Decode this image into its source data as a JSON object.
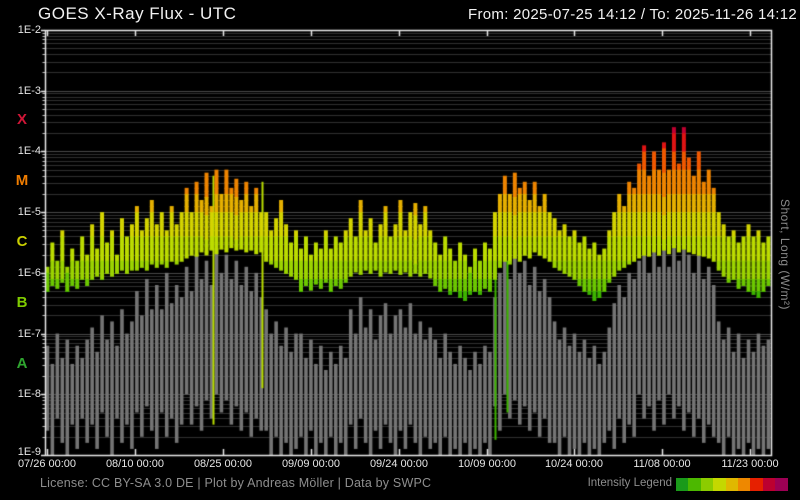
{
  "header": {
    "title": "GOES X-Ray Flux - UTC",
    "range": "From: 2025-07-25 14:12  /  To: 2025-11-26 14:12"
  },
  "footer": {
    "license": "License: CC BY-SA 3.0 DE | Plot by Andreas Möller | Data by SWPC",
    "legend_label": "Intensity Legend"
  },
  "axes": {
    "right_label": "Short, Long (W/m²)"
  },
  "chart_data": {
    "type": "line",
    "title": "GOES X-Ray Flux - UTC",
    "x_start": "2025-07-25 14:12",
    "x_end": "2025-11-26 14:12",
    "x_total_days": 124,
    "grid": true,
    "y_log_range": [
      -2,
      -9
    ],
    "y_tick_labels": [
      "1E-2",
      "1E-3",
      "1E-4",
      "1E-5",
      "1E-6",
      "1E-7",
      "1E-8",
      "1E-9"
    ],
    "class_bands": [
      {
        "label": "X",
        "log": -3.5,
        "color": "#d01637"
      },
      {
        "label": "M",
        "log": -4.5,
        "color": "#f07d00"
      },
      {
        "label": "C",
        "log": -5.5,
        "color": "#c9ce00"
      },
      {
        "label": "B",
        "log": -6.5,
        "color": "#7fcb00"
      },
      {
        "label": "A",
        "log": -7.5,
        "color": "#2fa52f"
      }
    ],
    "x_ticks": [
      {
        "label": "07/26 00:00",
        "day": 0.41
      },
      {
        "label": "08/10 00:00",
        "day": 15.41
      },
      {
        "label": "08/25 00:00",
        "day": 30.41
      },
      {
        "label": "09/09 00:00",
        "day": 45.41
      },
      {
        "label": "09/24 00:00",
        "day": 60.41
      },
      {
        "label": "10/09 00:00",
        "day": 75.41
      },
      {
        "label": "10/24 00:00",
        "day": 90.41
      },
      {
        "label": "11/08 00:00",
        "day": 105.41
      },
      {
        "label": "11/23 00:00",
        "day": 120.41
      }
    ],
    "legend_colors": [
      "#1a9a1a",
      "#4cb800",
      "#8ccc00",
      "#c4d800",
      "#e0b800",
      "#ee8800",
      "#e62000",
      "#bc0030",
      "#9c0054"
    ],
    "color_stops": [
      {
        "max": -6.3,
        "color": "#3db400"
      },
      {
        "max": -6.05,
        "color": "#6cc800"
      },
      {
        "max": -5.8,
        "color": "#9cd400"
      },
      {
        "max": -5.4,
        "color": "#bcdc00"
      },
      {
        "max": -5.0,
        "color": "#d4d400"
      },
      {
        "max": -4.7,
        "color": "#e6b000"
      },
      {
        "max": -4.3,
        "color": "#ee8400"
      },
      {
        "max": -4.0,
        "color": "#f05800"
      },
      {
        "max": -3.7,
        "color": "#e01414"
      },
      {
        "max": 0,
        "color": "#c00030"
      }
    ],
    "gap_lines": [
      {
        "day": 28.7,
        "from_log": -4.4,
        "to_log": -8.5,
        "color": "#b8dc00"
      },
      {
        "day": 37.1,
        "from_log": -4.5,
        "to_log": -7.9,
        "color": "#b8dc00"
      },
      {
        "day": 76.9,
        "from_log": -5.9,
        "to_log": -8.75,
        "color": "#3db400"
      },
      {
        "day": 78.9,
        "from_log": -5.8,
        "to_log": -8.3,
        "color": "#3db400"
      }
    ],
    "series": [
      {
        "name": "long",
        "style": "intensity-gradient",
        "hi": [
          -5.9,
          -5.5,
          -5.8,
          -5.3,
          -5.9,
          -5.6,
          -5.8,
          -5.4,
          -5.7,
          -5.2,
          -5.6,
          -5.0,
          -5.5,
          -5.3,
          -5.7,
          -5.1,
          -5.4,
          -5.2,
          -4.9,
          -5.3,
          -5.1,
          -4.8,
          -5.2,
          -5.0,
          -5.3,
          -4.9,
          -5.2,
          -5.0,
          -4.6,
          -5.0,
          -4.5,
          -4.8,
          -4.35,
          -4.9,
          -4.3,
          -4.7,
          -4.3,
          -4.6,
          -4.45,
          -4.8,
          -4.5,
          -4.9,
          -4.6,
          -5.0,
          -5.0,
          -5.3,
          -5.1,
          -4.8,
          -5.2,
          -5.5,
          -5.3,
          -5.6,
          -5.4,
          -5.7,
          -5.5,
          -5.6,
          -5.3,
          -5.6,
          -5.4,
          -5.5,
          -5.3,
          -5.1,
          -5.4,
          -4.8,
          -5.3,
          -5.1,
          -5.5,
          -5.2,
          -4.9,
          -5.4,
          -5.2,
          -4.8,
          -5.3,
          -5.0,
          -4.85,
          -5.2,
          -4.9,
          -5.3,
          -5.5,
          -5.7,
          -5.4,
          -5.6,
          -5.8,
          -5.5,
          -5.7,
          -5.9,
          -5.6,
          -5.8,
          -5.5,
          -5.6,
          -5.0,
          -4.7,
          -4.4,
          -4.7,
          -4.35,
          -4.6,
          -4.5,
          -4.8,
          -4.5,
          -4.9,
          -4.7,
          -5.0,
          -5.1,
          -5.3,
          -5.2,
          -5.4,
          -5.3,
          -5.5,
          -5.4,
          -5.6,
          -5.5,
          -5.7,
          -5.6,
          -5.3,
          -5.0,
          -4.7,
          -4.9,
          -4.5,
          -4.6,
          -4.2,
          -3.9,
          -4.4,
          -4.0,
          -4.3,
          -3.85,
          -4.3,
          -3.6,
          -4.2,
          -3.6,
          -4.1,
          -4.4,
          -4.0,
          -4.5,
          -4.3,
          -4.6,
          -5.0,
          -5.2,
          -5.4,
          -5.3,
          -5.5,
          -5.4,
          -5.2,
          -5.4,
          -5.3,
          -5.5,
          -5.4
        ],
        "lo": [
          -6.3,
          -6.2,
          -6.25,
          -6.15,
          -6.3,
          -6.2,
          -6.25,
          -6.1,
          -6.2,
          -6.1,
          -6.05,
          -6.1,
          -6.0,
          -6.05,
          -6.0,
          -5.95,
          -6.0,
          -5.95,
          -5.95,
          -5.9,
          -5.95,
          -5.85,
          -5.9,
          -5.85,
          -5.9,
          -5.8,
          -5.85,
          -5.8,
          -5.75,
          -5.7,
          -5.72,
          -5.65,
          -5.7,
          -5.62,
          -5.68,
          -5.6,
          -5.65,
          -5.58,
          -5.62,
          -5.6,
          -5.65,
          -5.62,
          -5.68,
          -5.65,
          -5.8,
          -5.85,
          -5.9,
          -5.95,
          -6.0,
          -6.05,
          -6.1,
          -6.3,
          -6.2,
          -6.28,
          -6.18,
          -6.25,
          -6.15,
          -6.3,
          -6.2,
          -6.25,
          -6.15,
          -6.05,
          -5.98,
          -6.02,
          -5.95,
          -6.0,
          -5.95,
          -6.05,
          -5.98,
          -6.0,
          -5.95,
          -6.02,
          -5.98,
          -6.05,
          -6.0,
          -6.05,
          -6.0,
          -6.08,
          -6.2,
          -6.3,
          -6.25,
          -6.35,
          -6.3,
          -6.4,
          -6.45,
          -6.35,
          -6.3,
          -6.35,
          -6.25,
          -6.3,
          -6.1,
          -5.9,
          -5.8,
          -5.85,
          -5.75,
          -5.8,
          -5.7,
          -5.75,
          -5.65,
          -5.7,
          -5.75,
          -5.8,
          -5.9,
          -5.95,
          -6.0,
          -6.05,
          -6.1,
          -6.2,
          -6.3,
          -6.35,
          -6.45,
          -6.4,
          -6.3,
          -6.15,
          -6.05,
          -5.95,
          -5.9,
          -5.85,
          -5.8,
          -5.75,
          -5.7,
          -5.72,
          -5.65,
          -5.7,
          -5.62,
          -5.68,
          -5.58,
          -5.65,
          -5.6,
          -5.65,
          -5.68,
          -5.7,
          -5.72,
          -5.75,
          -5.8,
          -5.95,
          -6.05,
          -6.15,
          -6.1,
          -6.25,
          -6.2,
          -6.3,
          -6.35,
          -6.4,
          -6.3,
          -6.2
        ]
      },
      {
        "name": "short",
        "style": "solid",
        "color": "#757575",
        "hi": [
          -7.2,
          -7.5,
          -7.0,
          -7.4,
          -7.1,
          -7.5,
          -7.2,
          -7.4,
          -7.1,
          -6.9,
          -7.3,
          -6.7,
          -7.1,
          -6.8,
          -7.2,
          -6.6,
          -7.0,
          -6.8,
          -6.3,
          -6.7,
          -6.1,
          -6.6,
          -6.2,
          -6.6,
          -6.0,
          -6.5,
          -6.2,
          -6.4,
          -5.9,
          -6.3,
          -5.7,
          -6.1,
          -5.8,
          -6.2,
          -5.6,
          -6.0,
          -5.7,
          -6.1,
          -5.8,
          -6.2,
          -5.9,
          -6.3,
          -6.0,
          -6.4,
          -6.6,
          -7.0,
          -6.8,
          -7.2,
          -6.9,
          -7.3,
          -7.0,
          -7.0,
          -7.4,
          -7.1,
          -7.5,
          -7.2,
          -7.6,
          -7.3,
          -7.5,
          -7.2,
          -7.4,
          -6.6,
          -7.0,
          -6.4,
          -6.9,
          -6.6,
          -7.1,
          -6.7,
          -6.5,
          -7.0,
          -6.7,
          -6.6,
          -6.9,
          -6.5,
          -7.0,
          -6.8,
          -7.1,
          -6.9,
          -7.1,
          -7.4,
          -7.0,
          -7.3,
          -7.5,
          -7.2,
          -7.4,
          -7.6,
          -7.3,
          -7.5,
          -7.2,
          -7.3,
          -6.4,
          -6.0,
          -5.7,
          -6.1,
          -5.6,
          -6.0,
          -5.8,
          -6.2,
          -5.9,
          -6.3,
          -6.1,
          -6.4,
          -6.8,
          -7.1,
          -6.9,
          -7.2,
          -7.0,
          -7.3,
          -7.1,
          -7.4,
          -7.2,
          -7.5,
          -7.3,
          -6.9,
          -6.5,
          -6.2,
          -6.4,
          -6.0,
          -6.1,
          -5.8,
          -5.5,
          -6.0,
          -5.6,
          -5.9,
          -5.4,
          -5.9,
          -5.3,
          -5.8,
          -5.4,
          -5.7,
          -6.0,
          -5.6,
          -6.1,
          -5.9,
          -6.2,
          -6.8,
          -7.1,
          -6.9,
          -7.3,
          -7.0,
          -7.4,
          -7.1,
          -7.3,
          -7.0,
          -7.2,
          -7.1
        ],
        "lo": [
          -8.6,
          -9.0,
          -8.4,
          -8.8,
          -9.0,
          -8.5,
          -8.9,
          -8.4,
          -8.8,
          -8.5,
          -8.9,
          -8.3,
          -8.7,
          -9.0,
          -8.4,
          -8.8,
          -8.5,
          -8.9,
          -8.3,
          -8.7,
          -8.2,
          -8.6,
          -8.9,
          -8.3,
          -8.7,
          -8.4,
          -8.8,
          -8.5,
          -8.0,
          -8.5,
          -8.2,
          -8.6,
          -8.1,
          -8.4,
          -8.0,
          -8.3,
          -8.1,
          -8.5,
          -8.2,
          -8.6,
          -8.3,
          -8.7,
          -8.4,
          -8.6,
          -8.6,
          -9.0,
          -8.7,
          -9.0,
          -8.8,
          -9.0,
          -8.9,
          -8.7,
          -9.0,
          -8.6,
          -9.0,
          -8.8,
          -9.0,
          -8.7,
          -9.0,
          -8.8,
          -9.0,
          -8.5,
          -8.9,
          -8.4,
          -8.8,
          -9.0,
          -8.6,
          -8.9,
          -8.5,
          -8.8,
          -9.0,
          -8.6,
          -8.9,
          -8.5,
          -8.8,
          -9.0,
          -8.7,
          -8.9,
          -8.8,
          -9.0,
          -8.7,
          -9.0,
          -8.9,
          -9.0,
          -8.8,
          -9.0,
          -8.9,
          -9.0,
          -8.8,
          -9.0,
          -8.2,
          -8.6,
          -8.0,
          -8.4,
          -8.1,
          -8.5,
          -8.2,
          -8.6,
          -8.3,
          -8.7,
          -8.4,
          -8.8,
          -8.8,
          -9.0,
          -8.7,
          -9.0,
          -8.9,
          -9.0,
          -8.8,
          -9.0,
          -8.9,
          -9.0,
          -8.8,
          -8.6,
          -8.9,
          -8.4,
          -8.8,
          -8.5,
          -8.7,
          -8.0,
          -8.4,
          -8.2,
          -8.6,
          -8.1,
          -8.5,
          -8.0,
          -8.4,
          -8.2,
          -8.6,
          -8.3,
          -8.7,
          -8.4,
          -8.8,
          -8.5,
          -8.7,
          -8.8,
          -9.0,
          -8.7,
          -9.0,
          -8.9,
          -9.0,
          -8.8,
          -9.0,
          -8.9,
          -9.0,
          -8.9
        ]
      }
    ]
  }
}
